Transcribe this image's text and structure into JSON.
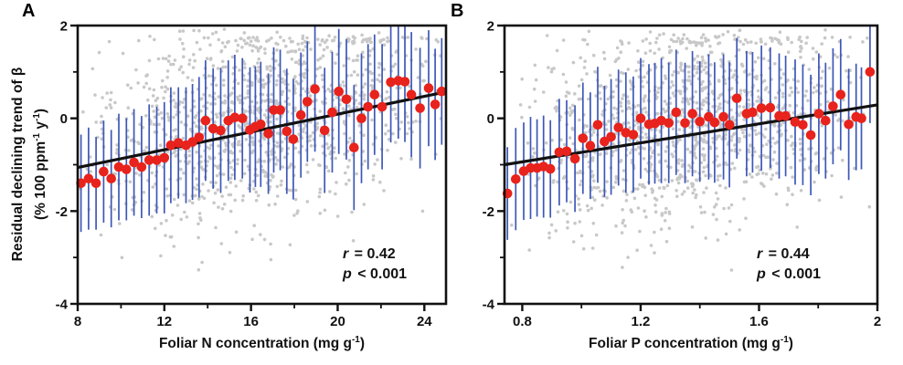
{
  "figure": {
    "colors": {
      "mean_point": "#e8221c",
      "error_bar": "#3d57b8",
      "raw_point": "#c8c8c8",
      "trend_line": "#111111",
      "axis": "#111111",
      "text": "#111111"
    },
    "ylabel": {
      "line1": "Residual declining trend of β",
      "line2_pre": "(% 100 ppm",
      "line2_sup1": "-1",
      "line2_mid": " y",
      "line2_sup2": "-1",
      "line2_post": ")"
    },
    "panels": [
      {
        "letter": "A",
        "xlabel": {
          "pre": "Foliar N concentration (mg g",
          "sup": "-1",
          "post": ")"
        },
        "stats": {
          "r_sym": "r",
          "r_rest": " = 0.42",
          "p_sym": "p",
          "p_rest": " < 0.001"
        }
      },
      {
        "letter": "B",
        "xlabel": {
          "pre": "Foliar P concentration (mg g",
          "sup": "-1",
          "post": ")"
        },
        "stats": {
          "r_sym": "r",
          "r_rest": " = 0.44",
          "p_sym": "p",
          "p_rest": " < 0.001"
        }
      }
    ]
  },
  "chart_data": [
    {
      "type": "scatter",
      "panel": "A",
      "xlabel": "Foliar N concentration (mg g⁻¹)",
      "ylabel": "Residual declining trend of β (% 100 ppm⁻¹ y⁻¹)",
      "xlim": [
        8,
        25
      ],
      "ylim": [
        -4,
        2
      ],
      "x_ticks": {
        "values": [
          8,
          12,
          16,
          20,
          24
        ],
        "labels": [
          "8",
          "12",
          "16",
          "20",
          "24"
        ]
      },
      "x_minor_ticks": [
        10,
        14,
        18,
        22
      ],
      "y_ticks": {
        "values": [
          2,
          0,
          -2,
          -4
        ],
        "labels": [
          "2",
          "0",
          "-2",
          "-4"
        ]
      },
      "y_minor_ticks": [
        1,
        -1,
        -3
      ],
      "grid": false,
      "stats": {
        "r": 0.42,
        "p": "< 0.001"
      },
      "trend_line": {
        "x": [
          8,
          25
        ],
        "y": [
          -1.06,
          0.57
        ]
      },
      "binned_means_xyerr": [
        [
          8.15,
          -1.4,
          1.05
        ],
        [
          8.5,
          -1.3,
          1.1
        ],
        [
          8.85,
          -1.4,
          1.0
        ],
        [
          9.2,
          -1.15,
          1.1
        ],
        [
          9.55,
          -1.3,
          1.05
        ],
        [
          9.9,
          -1.05,
          1.15
        ],
        [
          10.25,
          -1.1,
          1.1
        ],
        [
          10.6,
          -0.95,
          1.15
        ],
        [
          10.95,
          -1.05,
          1.1
        ],
        [
          11.3,
          -0.9,
          1.2
        ],
        [
          11.65,
          -0.9,
          1.15
        ],
        [
          12.0,
          -0.85,
          1.2
        ],
        [
          12.3,
          -0.58,
          1.25
        ],
        [
          12.65,
          -0.53,
          1.2
        ],
        [
          13.0,
          -0.58,
          1.25
        ],
        [
          13.3,
          -0.51,
          1.25
        ],
        [
          13.6,
          -0.41,
          1.3
        ],
        [
          13.9,
          -0.05,
          1.3
        ],
        [
          14.25,
          -0.22,
          1.3
        ],
        [
          14.6,
          -0.26,
          1.35
        ],
        [
          14.95,
          -0.05,
          1.3
        ],
        [
          15.25,
          0.02,
          1.35
        ],
        [
          15.6,
          0.0,
          1.3
        ],
        [
          15.95,
          -0.25,
          1.35
        ],
        [
          16.2,
          -0.18,
          1.3
        ],
        [
          16.45,
          -0.13,
          1.35
        ],
        [
          16.8,
          -0.33,
          1.3
        ],
        [
          17.05,
          0.18,
          1.35
        ],
        [
          17.35,
          0.18,
          1.3
        ],
        [
          17.65,
          -0.28,
          1.35
        ],
        [
          17.95,
          -0.45,
          1.3
        ],
        [
          18.3,
          0.07,
          1.35
        ],
        [
          18.6,
          0.36,
          1.3
        ],
        [
          18.95,
          0.63,
          1.35
        ],
        [
          19.4,
          -0.26,
          1.35
        ],
        [
          19.75,
          0.13,
          1.3
        ],
        [
          20.05,
          0.58,
          1.35
        ],
        [
          20.4,
          0.41,
          1.3
        ],
        [
          20.75,
          -0.63,
          1.35
        ],
        [
          21.1,
          0.0,
          1.4
        ],
        [
          21.4,
          0.25,
          1.35
        ],
        [
          21.7,
          0.51,
          1.3
        ],
        [
          22.05,
          0.25,
          1.35
        ],
        [
          22.45,
          0.78,
          1.3
        ],
        [
          22.8,
          0.81,
          1.25
        ],
        [
          23.1,
          0.79,
          1.3
        ],
        [
          23.4,
          0.51,
          1.35
        ],
        [
          23.8,
          0.22,
          1.3
        ],
        [
          24.2,
          0.65,
          1.25
        ],
        [
          24.5,
          0.3,
          1.2
        ],
        [
          24.8,
          0.58,
          1.15
        ]
      ],
      "background_scatter": {
        "generated": true,
        "count": 1250,
        "seed": 41,
        "x_distribution": "triangular",
        "y_sigma": 1.08,
        "y_offset_from_trend": 0.3,
        "y_top_band": 1.68,
        "y_clip": [
          -3.5,
          1.93
        ]
      }
    },
    {
      "type": "scatter",
      "panel": "B",
      "xlabel": "Foliar P concentration (mg g⁻¹)",
      "ylabel": "Residual declining trend of β (% 100 ppm⁻¹ y⁻¹)",
      "xlim": [
        0.74,
        2.0
      ],
      "ylim": [
        -4,
        2
      ],
      "x_ticks": {
        "values": [
          0.8,
          1.2,
          1.6,
          2
        ],
        "labels": [
          "0.8",
          "1.2",
          "1.6",
          "2"
        ]
      },
      "x_minor_ticks": [
        1.0,
        1.4,
        1.8
      ],
      "y_ticks": {
        "values": [
          2,
          0,
          -2,
          -4
        ],
        "labels": [
          "2",
          "0",
          "-2",
          "-4"
        ]
      },
      "y_minor_ticks": [
        1,
        -1,
        -3
      ],
      "grid": false,
      "stats": {
        "r": 0.44,
        "p": "< 0.001"
      },
      "trend_line": {
        "x": [
          0.74,
          2.0
        ],
        "y": [
          -1.0,
          0.29
        ]
      },
      "binned_means_xyerr": [
        [
          0.75,
          -1.62,
          1.0
        ],
        [
          0.778,
          -1.31,
          1.1
        ],
        [
          0.805,
          -1.14,
          1.05
        ],
        [
          0.828,
          -1.07,
          1.1
        ],
        [
          0.85,
          -1.07,
          1.05
        ],
        [
          0.872,
          -1.04,
          1.1
        ],
        [
          0.895,
          -1.09,
          1.05
        ],
        [
          0.925,
          -0.73,
          1.15
        ],
        [
          0.95,
          -0.71,
          1.1
        ],
        [
          0.978,
          -0.87,
          1.15
        ],
        [
          1.005,
          -0.43,
          1.2
        ],
        [
          1.03,
          -0.59,
          1.15
        ],
        [
          1.055,
          -0.14,
          1.25
        ],
        [
          1.078,
          -0.5,
          1.2
        ],
        [
          1.1,
          -0.4,
          1.25
        ],
        [
          1.125,
          -0.2,
          1.25
        ],
        [
          1.15,
          -0.31,
          1.3
        ],
        [
          1.175,
          -0.35,
          1.25
        ],
        [
          1.2,
          0.0,
          1.3
        ],
        [
          1.228,
          -0.13,
          1.3
        ],
        [
          1.248,
          -0.11,
          1.3
        ],
        [
          1.27,
          -0.05,
          1.35
        ],
        [
          1.295,
          -0.1,
          1.3
        ],
        [
          1.32,
          0.13,
          1.35
        ],
        [
          1.35,
          -0.1,
          1.3
        ],
        [
          1.375,
          0.1,
          1.35
        ],
        [
          1.4,
          -0.07,
          1.3
        ],
        [
          1.43,
          0.03,
          1.35
        ],
        [
          1.45,
          -0.09,
          1.3
        ],
        [
          1.48,
          0.03,
          1.35
        ],
        [
          1.5,
          -0.14,
          1.35
        ],
        [
          1.525,
          0.43,
          1.3
        ],
        [
          1.558,
          0.1,
          1.35
        ],
        [
          1.578,
          0.13,
          1.3
        ],
        [
          1.608,
          0.22,
          1.35
        ],
        [
          1.638,
          0.23,
          1.3
        ],
        [
          1.668,
          0.05,
          1.35
        ],
        [
          1.69,
          0.05,
          1.3
        ],
        [
          1.722,
          -0.08,
          1.35
        ],
        [
          1.748,
          -0.14,
          1.3
        ],
        [
          1.775,
          -0.36,
          1.3
        ],
        [
          1.802,
          0.1,
          1.3
        ],
        [
          1.825,
          -0.05,
          1.25
        ],
        [
          1.85,
          0.26,
          1.25
        ],
        [
          1.876,
          0.51,
          1.2
        ],
        [
          1.903,
          -0.13,
          1.2
        ],
        [
          1.928,
          0.03,
          1.15
        ],
        [
          1.946,
          0.0,
          1.1
        ],
        [
          1.975,
          1.0,
          1.1
        ]
      ],
      "background_scatter": {
        "generated": true,
        "count": 1250,
        "seed": 97,
        "x_distribution": "triangular",
        "y_sigma": 1.08,
        "y_offset_from_trend": 0.3,
        "y_top_band": 1.68,
        "y_clip": [
          -3.5,
          1.93
        ]
      }
    }
  ]
}
